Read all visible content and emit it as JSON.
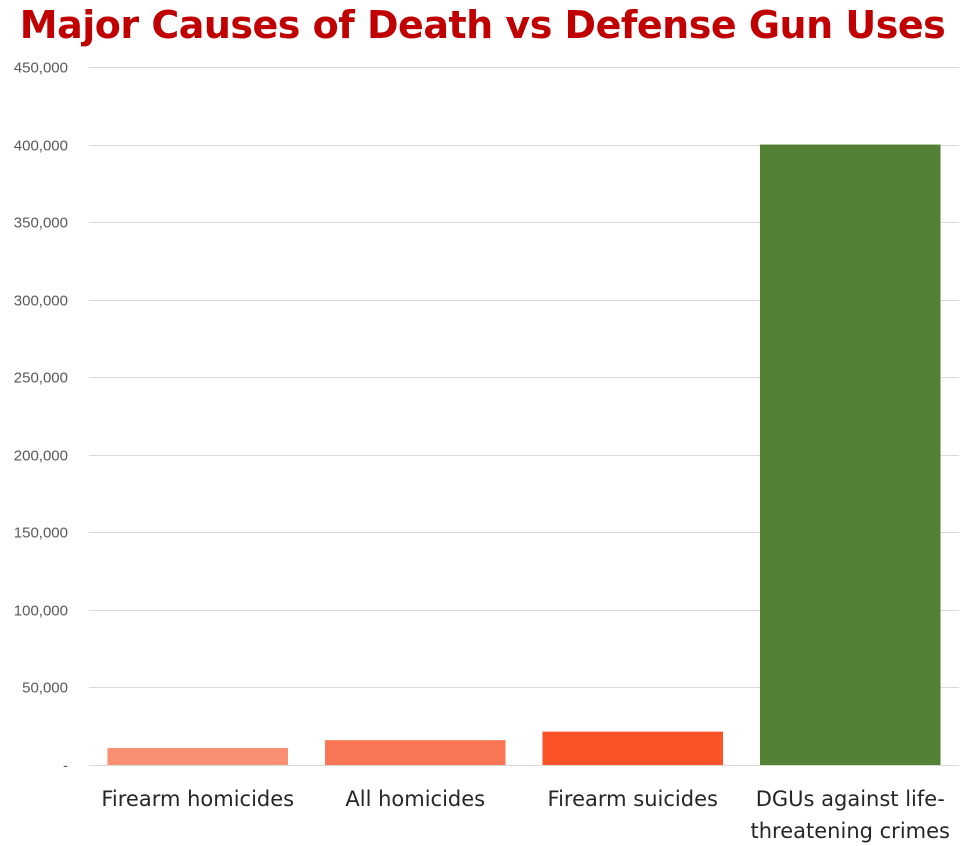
{
  "chart_data": {
    "type": "bar",
    "title": "Major Causes of Death vs Defense Gun Uses",
    "xlabel": "",
    "ylabel": "",
    "ylim": [
      0,
      450000
    ],
    "yticks": [
      0,
      50000,
      100000,
      150000,
      200000,
      250000,
      300000,
      350000,
      400000,
      450000
    ],
    "ytick_labels": [
      "-",
      "50,000",
      "100,000",
      "150,000",
      "200,000",
      "250,000",
      "300,000",
      "350,000",
      "400,000",
      "450,000"
    ],
    "grid": true,
    "legend": "none",
    "categories": [
      [
        "Firearm homicides"
      ],
      [
        "All homicides"
      ],
      [
        "Firearm suicides"
      ],
      [
        "DGUs against life-",
        "threatening crimes"
      ]
    ],
    "values": [
      11000,
      16000,
      21500,
      400000
    ],
    "colors": [
      "#fb8f73",
      "#fb7655",
      "#fc5228",
      "#538135"
    ]
  }
}
